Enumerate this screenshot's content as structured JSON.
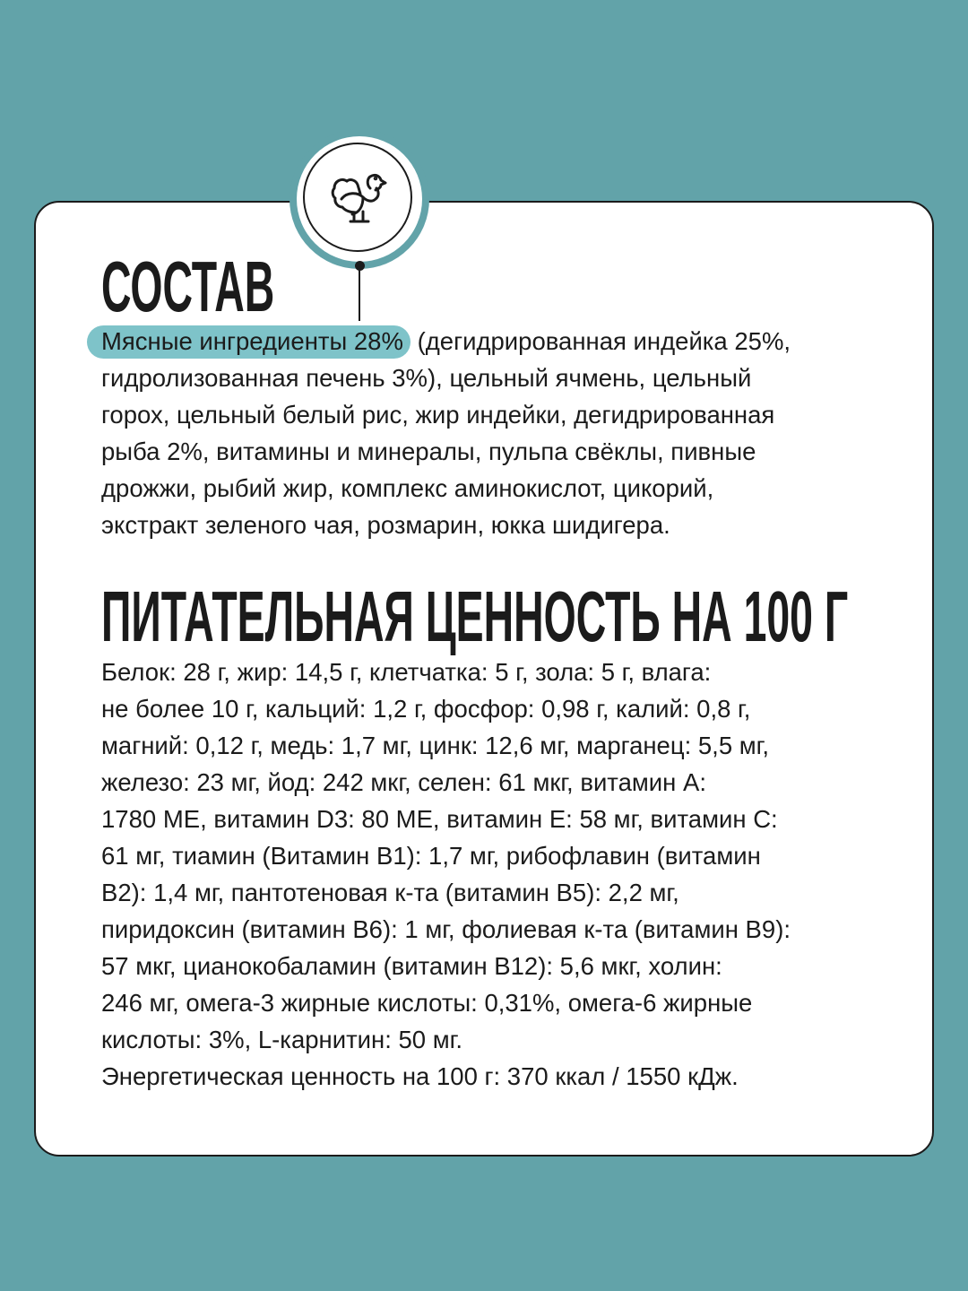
{
  "colors": {
    "background": "#62a3a9",
    "highlight": "#7ec3c9",
    "card": "#ffffff",
    "text": "#1b1b1b"
  },
  "badge": {
    "icon": "turkey-icon"
  },
  "composition": {
    "title": "СОСТАВ",
    "highlight": "Мясные ингредиенты 28%",
    "lines": [
      " (дегидрированная индейка 25%,",
      "гидролизованная печень 3%), цельный ячмень, цельный",
      "горох, цельный белый рис, жир индейки, дегидрированная",
      "рыба 2%, витамины и минералы, пульпа свёклы, пивные",
      "дрожжи, рыбий жир, комплекс аминокислот, цикорий,",
      "экстракт зеленого чая, розмарин, юкка шидигера."
    ]
  },
  "nutrition": {
    "title": "ПИТАТЕЛЬНАЯ ЦЕННОСТЬ НА 100 Г",
    "lines": [
      "Белок: 28 г, жир: 14,5 г, клетчатка: 5 г, зола: 5 г, влага:",
      "не более 10 г, кальций: 1,2 г, фосфор: 0,98 г, калий: 0,8 г,",
      "магний: 0,12 г, медь: 1,7 мг, цинк: 12,6 мг, марганец: 5,5 мг,",
      "железо: 23 мг, йод: 242 мкг, селен: 61 мкг, витамин А:",
      "1780 МЕ, витамин D3: 80 МЕ, витамин Е: 58 мг, витамин С:",
      "61 мг, тиамин (Витамин В1): 1,7 мг, рибофлавин (витамин",
      "В2): 1,4 мг, пантотеновая к-та (витамин В5): 2,2 мг,",
      "пиридоксин (витамин В6): 1 мг, фолиевая к-та (витамин В9):",
      "57 мкг, цианокобаламин (витамин В12): 5,6 мкг, холин:",
      "246 мг, омега-3 жирные кислоты: 0,31%, омега-6 жирные",
      "кислоты: 3%, L-карнитин: 50 мг.",
      "Энергетическая ценность на 100 г: 370 ккал / 1550 кДж."
    ]
  }
}
